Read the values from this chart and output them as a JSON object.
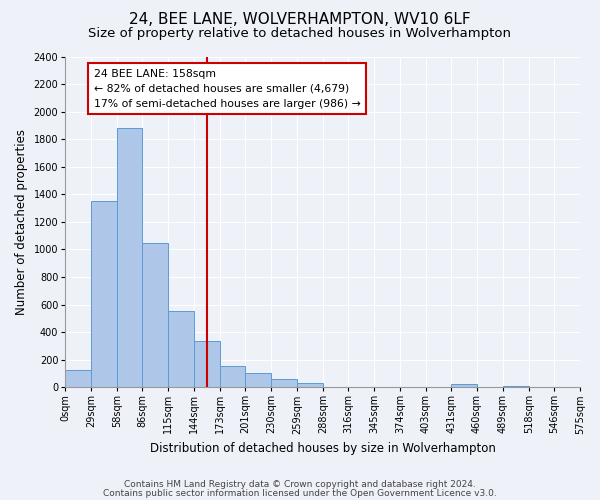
{
  "title": "24, BEE LANE, WOLVERHAMPTON, WV10 6LF",
  "subtitle": "Size of property relative to detached houses in Wolverhampton",
  "xlabel": "Distribution of detached houses by size in Wolverhampton",
  "ylabel": "Number of detached properties",
  "bar_values": [
    125,
    1350,
    1880,
    1050,
    550,
    335,
    155,
    105,
    60,
    30,
    0,
    0,
    0,
    0,
    0,
    20,
    0,
    10,
    0,
    0
  ],
  "bin_edges": [
    0,
    29,
    58,
    86,
    115,
    144,
    173,
    201,
    230,
    259,
    288,
    316,
    345,
    374,
    403,
    431,
    460,
    489,
    518,
    546,
    575
  ],
  "bin_labels": [
    "0sqm",
    "29sqm",
    "58sqm",
    "86sqm",
    "115sqm",
    "144sqm",
    "173sqm",
    "201sqm",
    "230sqm",
    "259sqm",
    "288sqm",
    "316sqm",
    "345sqm",
    "374sqm",
    "403sqm",
    "431sqm",
    "460sqm",
    "489sqm",
    "518sqm",
    "546sqm",
    "575sqm"
  ],
  "bar_color": "#aec6e8",
  "bar_edge_color": "#5b9bd5",
  "property_line_x": 158,
  "property_line_color": "#cc0000",
  "annotation_line1": "24 BEE LANE: 158sqm",
  "annotation_line2": "← 82% of detached houses are smaller (4,679)",
  "annotation_line3": "17% of semi-detached houses are larger (986) →",
  "annotation_box_color": "#ffffff",
  "annotation_box_edge": "#cc0000",
  "ylim": [
    0,
    2400
  ],
  "yticks": [
    0,
    200,
    400,
    600,
    800,
    1000,
    1200,
    1400,
    1600,
    1800,
    2000,
    2200,
    2400
  ],
  "footer1": "Contains HM Land Registry data © Crown copyright and database right 2024.",
  "footer2": "Contains public sector information licensed under the Open Government Licence v3.0.",
  "bg_color": "#eef2f8",
  "plot_bg_color": "#eef2f8",
  "grid_color": "#ffffff",
  "title_fontsize": 11,
  "subtitle_fontsize": 9.5,
  "axis_label_fontsize": 8.5,
  "tick_fontsize": 7,
  "footer_fontsize": 6.5
}
